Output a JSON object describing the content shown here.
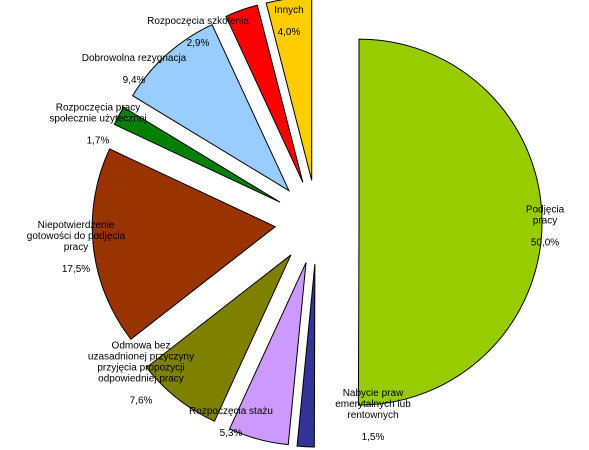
{
  "chart_data": {
    "type": "pie",
    "title": "",
    "legend": "none",
    "slices": [
      {
        "label": "Podjęcia pracy",
        "value": 50.0,
        "display": "50,0%",
        "color": "#99CC00"
      },
      {
        "label": "Nabycie praw\nemerytalnych lub\nrentownych",
        "value": 1.5,
        "display": "1,5%",
        "color": "#333399"
      },
      {
        "label": "Rozpoczęcia stażu",
        "value": 5.3,
        "display": "5,3%",
        "color": "#CC99FF"
      },
      {
        "label": "Odmowa bez\nuzasadnionej przyczyny\nprzyjęcia propozycji\nodpowiedniej pracy",
        "value": 7.6,
        "display": "7,6%",
        "color": "#808000"
      },
      {
        "label": "Niepotwierdzenie\ngotowości do podjęcia\npracy",
        "value": 17.5,
        "display": "17,5%",
        "color": "#993300"
      },
      {
        "label": "Rozpoczęcia pracy\nspołecznie użytecznej",
        "value": 1.7,
        "display": "1,7%",
        "color": "#008000"
      },
      {
        "label": "Dobrowolna rezygnacja",
        "value": 9.4,
        "display": "9,4%",
        "color": "#99CCFF"
      },
      {
        "label": "Rozpoczęcia szkolenia",
        "value": 2.9,
        "display": "2,9%",
        "color": "#FF0000"
      },
      {
        "label": "Innych",
        "value": 4.0,
        "display": "4,0%",
        "color": "#FFCC00"
      }
    ]
  }
}
